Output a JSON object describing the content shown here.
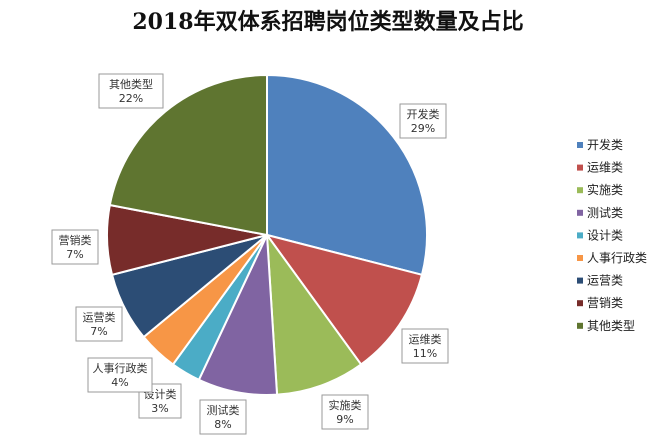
{
  "chart_data": {
    "type": "pie",
    "title": "2018年双体系招聘岗位类型数量及占比",
    "categories": [
      "开发类",
      "运维类",
      "实施类",
      "测试类",
      "设计类",
      "人事行政类",
      "运营类",
      "营销类",
      "其他类型"
    ],
    "values": [
      29,
      11,
      9,
      8,
      3,
      4,
      7,
      7,
      22
    ],
    "value_labels": [
      "29%",
      "11%",
      "9%",
      "8%",
      "3%",
      "4%",
      "7%",
      "7%",
      "22%"
    ],
    "colors": [
      "#4F81BD",
      "#C0504D",
      "#9BBB59",
      "#8064A2",
      "#4BACC6",
      "#F79646",
      "#2C4D75",
      "#772C2A",
      "#5F7530"
    ],
    "start_angle_deg": 0,
    "direction": "clockwise",
    "legend_position": "right"
  }
}
